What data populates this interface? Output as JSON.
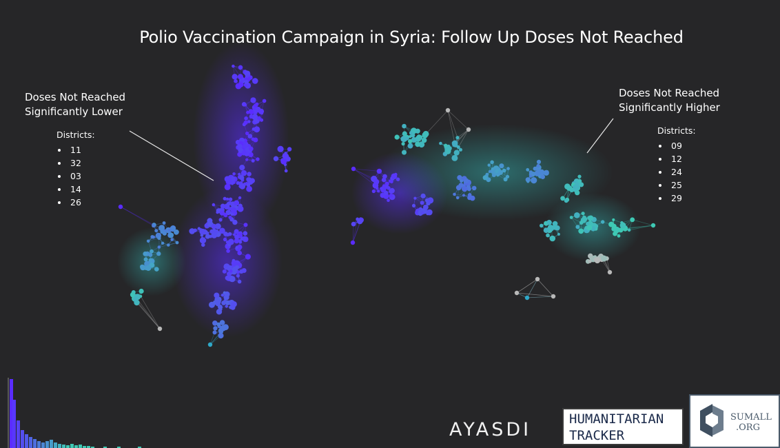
{
  "title": "Polio Vaccination Campaign in Syria: Follow Up Doses Not Reached",
  "left_label": {
    "heading_line1": "Doses Not Reached",
    "heading_line2": "Significantly Lower",
    "districts_title": "Districts:",
    "districts": [
      "11",
      "32",
      "03",
      "14",
      "26"
    ]
  },
  "right_label": {
    "heading_line1": "Doses Not Reached",
    "heading_line2": "Significantly Higher",
    "districts_title": "Districts:",
    "districts": [
      "09",
      "12",
      "24",
      "25",
      "29"
    ]
  },
  "logos": {
    "ayasdi": "AYASDI",
    "humanitarian_line1": "HUMANITARIAN",
    "humanitarian_line2": "TRACKER",
    "sumall_line1": "SUMALL",
    "sumall_line2": ".ORG"
  },
  "colors": {
    "background": "#262628",
    "low": "#5a2cff",
    "mid": "#2fa8c8",
    "high": "#3ec9b4",
    "neutral": "#b9b9b9"
  }
}
